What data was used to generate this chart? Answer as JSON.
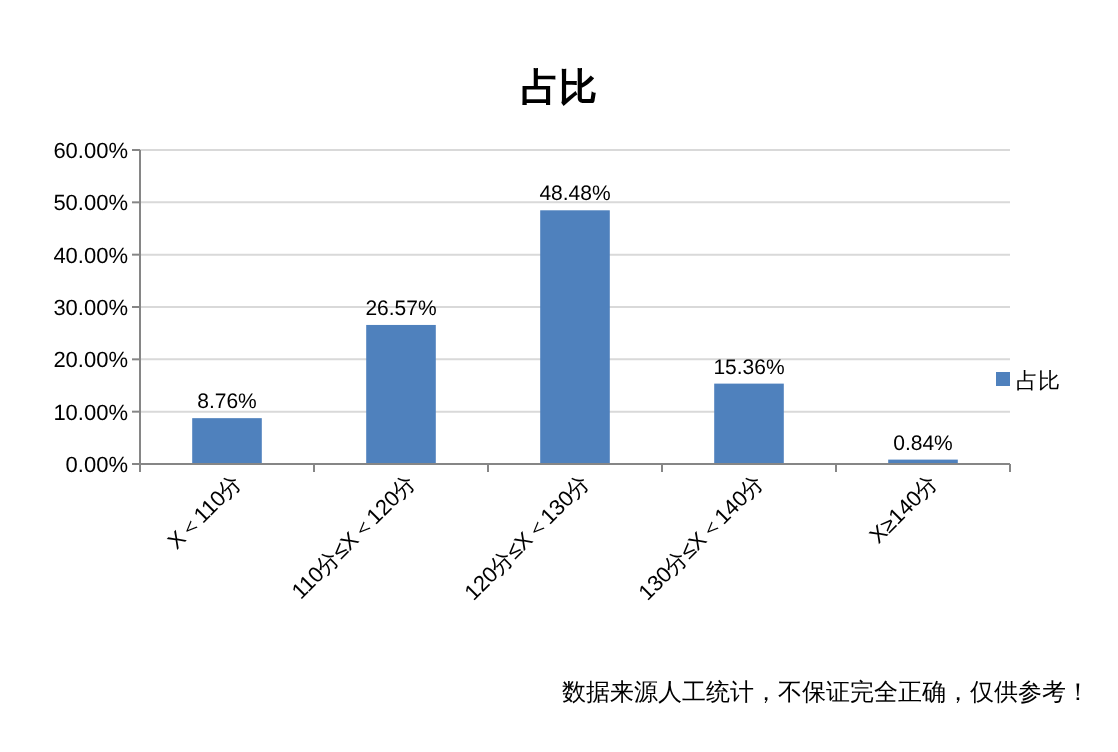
{
  "chart_data": {
    "type": "bar",
    "title": "占比",
    "categories": [
      "X＜110分",
      "110分≤X＜120分",
      "120分≤X＜130分",
      "130分≤X＜140分",
      "X≥140分"
    ],
    "series": [
      {
        "name": "占比",
        "color": "#4f81bd",
        "values": [
          8.76,
          26.57,
          48.48,
          15.36,
          0.84
        ],
        "value_labels": [
          "8.76%",
          "26.57%",
          "48.48%",
          "15.36%",
          "0.84%"
        ]
      }
    ],
    "ylim": [
      0,
      60
    ],
    "yticks": [
      {
        "value": 0,
        "label": "0.00%"
      },
      {
        "value": 10,
        "label": "10.00%"
      },
      {
        "value": 20,
        "label": "20.00%"
      },
      {
        "value": 30,
        "label": "30.00%"
      },
      {
        "value": 40,
        "label": "40.00%"
      },
      {
        "value": 50,
        "label": "50.00%"
      },
      {
        "value": 60,
        "label": "60.00%"
      }
    ],
    "grid": "y",
    "legend": "right",
    "annotations": [
      "数据来源人工统计，不保证完全正确，仅供参考！"
    ]
  }
}
